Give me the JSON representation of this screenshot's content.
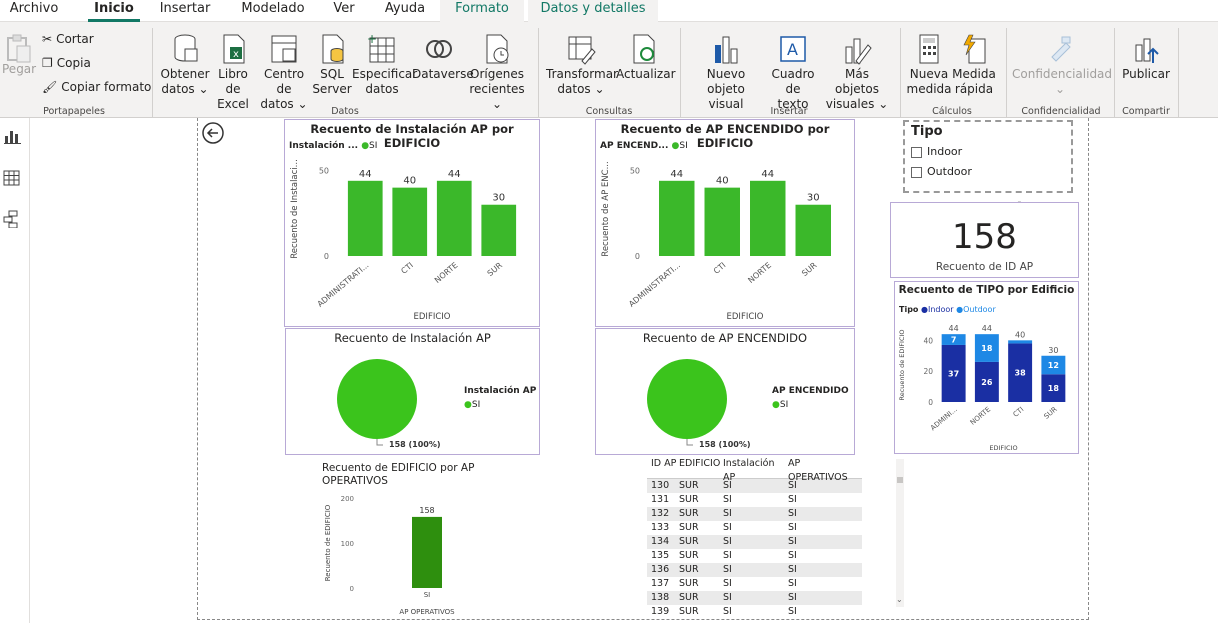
{
  "tabs": [
    "Archivo",
    "Inicio",
    "Insertar",
    "Modelado",
    "Ver",
    "Ayuda",
    "Formato",
    "Datos y detalles"
  ],
  "ribbon": {
    "clipboard": {
      "paste": "Pegar",
      "cut": "Cortar",
      "copy": "Copia",
      "format_painter": "Copiar formato",
      "group": "Portapapeles"
    },
    "data": {
      "get_data": [
        "Obtener",
        "datos"
      ],
      "excel": [
        "Libro de",
        "Excel"
      ],
      "datahub": [
        "Centro de",
        "datos"
      ],
      "sql": [
        "SQL",
        "Server"
      ],
      "enter": [
        "Especificar",
        "datos"
      ],
      "dataverse": "Dataverse",
      "recent": [
        "Orígenes",
        "recientes"
      ],
      "group": "Datos"
    },
    "queries": {
      "transform": [
        "Transformar",
        "datos"
      ],
      "refresh": "Actualizar",
      "group": "Consultas"
    },
    "insert": {
      "new_visual": [
        "Nuevo objeto",
        "visual"
      ],
      "textbox": [
        "Cuadro de",
        "texto"
      ],
      "more_visuals": [
        "Más objetos",
        "visuales"
      ],
      "group": "Insertar"
    },
    "calc": {
      "new_measure": [
        "Nueva",
        "medida"
      ],
      "quick_measure": [
        "Medida",
        "rápida"
      ],
      "group": "Cálculos"
    },
    "sensitivity": {
      "label": "Confidencialidad",
      "group": "Confidencialidad"
    },
    "share": {
      "publish": "Publicar",
      "group": "Compartir"
    }
  },
  "chart_data": [
    {
      "type": "bar",
      "title": "Recuento de Instalación AP por EDIFICIO",
      "legend_title": "Instalación ...",
      "legend": [
        "SI"
      ],
      "categories": [
        "ADMINISTRATI...",
        "CTI",
        "NORTE",
        "SUR"
      ],
      "values": [
        44,
        40,
        44,
        30
      ],
      "xlabel": "EDIFICIO",
      "ylabel": "Recuento de Instalaci...",
      "yticks": [
        0,
        50
      ],
      "ylim": [
        0,
        55
      ],
      "color": "#3bb82a"
    },
    {
      "type": "bar",
      "title": "Recuento de AP ENCENDIDO por EDIFICIO",
      "legend_title": "AP ENCEND...",
      "legend": [
        "SI"
      ],
      "categories": [
        "ADMINISTRATI...",
        "CTI",
        "NORTE",
        "SUR"
      ],
      "values": [
        44,
        40,
        44,
        30
      ],
      "xlabel": "EDIFICIO",
      "ylabel": "Recuento de AP ENC...",
      "yticks": [
        0,
        50
      ],
      "ylim": [
        0,
        55
      ],
      "color": "#3bb82a"
    },
    {
      "type": "pie",
      "title": "Recuento de Instalación AP",
      "legend_title": "Instalación AP",
      "legend": [
        "SI"
      ],
      "values": [
        158
      ],
      "data_label": "158 (100%)",
      "color": "#3bc41c"
    },
    {
      "type": "pie",
      "title": "Recuento de AP ENCENDIDO",
      "legend_title": "AP ENCENDIDO",
      "legend": [
        "SI"
      ],
      "values": [
        158
      ],
      "data_label": "158 (100%)",
      "color": "#3bc41c"
    },
    {
      "type": "bar",
      "title": "Recuento de EDIFICIO por AP OPERATIVOS",
      "categories": [
        "SI"
      ],
      "values": [
        158
      ],
      "xlabel": "AP OPERATIVOS",
      "ylabel": "Recuento de EDIFICIO",
      "yticks": [
        0,
        100,
        200
      ],
      "ylim": [
        0,
        200
      ],
      "color": "#2e8f0e"
    },
    {
      "type": "bar",
      "stacked": true,
      "title": "Recuento de TIPO por Edificio",
      "legend_title": "Tipo",
      "legend": [
        "Indoor",
        "Outdoor"
      ],
      "categories": [
        "ADMINI...",
        "NORTE",
        "CTI",
        "SUR"
      ],
      "series": [
        {
          "name": "Indoor",
          "values": [
            37,
            26,
            38,
            18
          ],
          "color": "#1a2fa3"
        },
        {
          "name": "Outdoor",
          "values": [
            7,
            18,
            2,
            12
          ],
          "color": "#1e88e5"
        }
      ],
      "totals": [
        44,
        44,
        40,
        30
      ],
      "xlabel": "EDIFICIO",
      "ylabel": "Recuento de EDIFICIO",
      "yticks": [
        0,
        20,
        40
      ],
      "ylim": [
        0,
        48
      ]
    }
  ],
  "card": {
    "value": "158",
    "label": "Recuento de ID AP"
  },
  "slicer": {
    "title": "Tipo",
    "items": [
      "Indoor",
      "Outdoor"
    ]
  },
  "table": {
    "headers": [
      "ID AP",
      "EDIFICIO",
      "Instalación AP",
      "AP OPERATIVOS"
    ],
    "rows": [
      [
        "130",
        "SUR",
        "SI",
        "SI"
      ],
      [
        "131",
        "SUR",
        "SI",
        "SI"
      ],
      [
        "132",
        "SUR",
        "SI",
        "SI"
      ],
      [
        "133",
        "SUR",
        "SI",
        "SI"
      ],
      [
        "134",
        "SUR",
        "SI",
        "SI"
      ],
      [
        "135",
        "SUR",
        "SI",
        "SI"
      ],
      [
        "136",
        "SUR",
        "SI",
        "SI"
      ],
      [
        "137",
        "SUR",
        "SI",
        "SI"
      ],
      [
        "138",
        "SUR",
        "SI",
        "SI"
      ],
      [
        "139",
        "SUR",
        "SI",
        "SI"
      ]
    ]
  }
}
